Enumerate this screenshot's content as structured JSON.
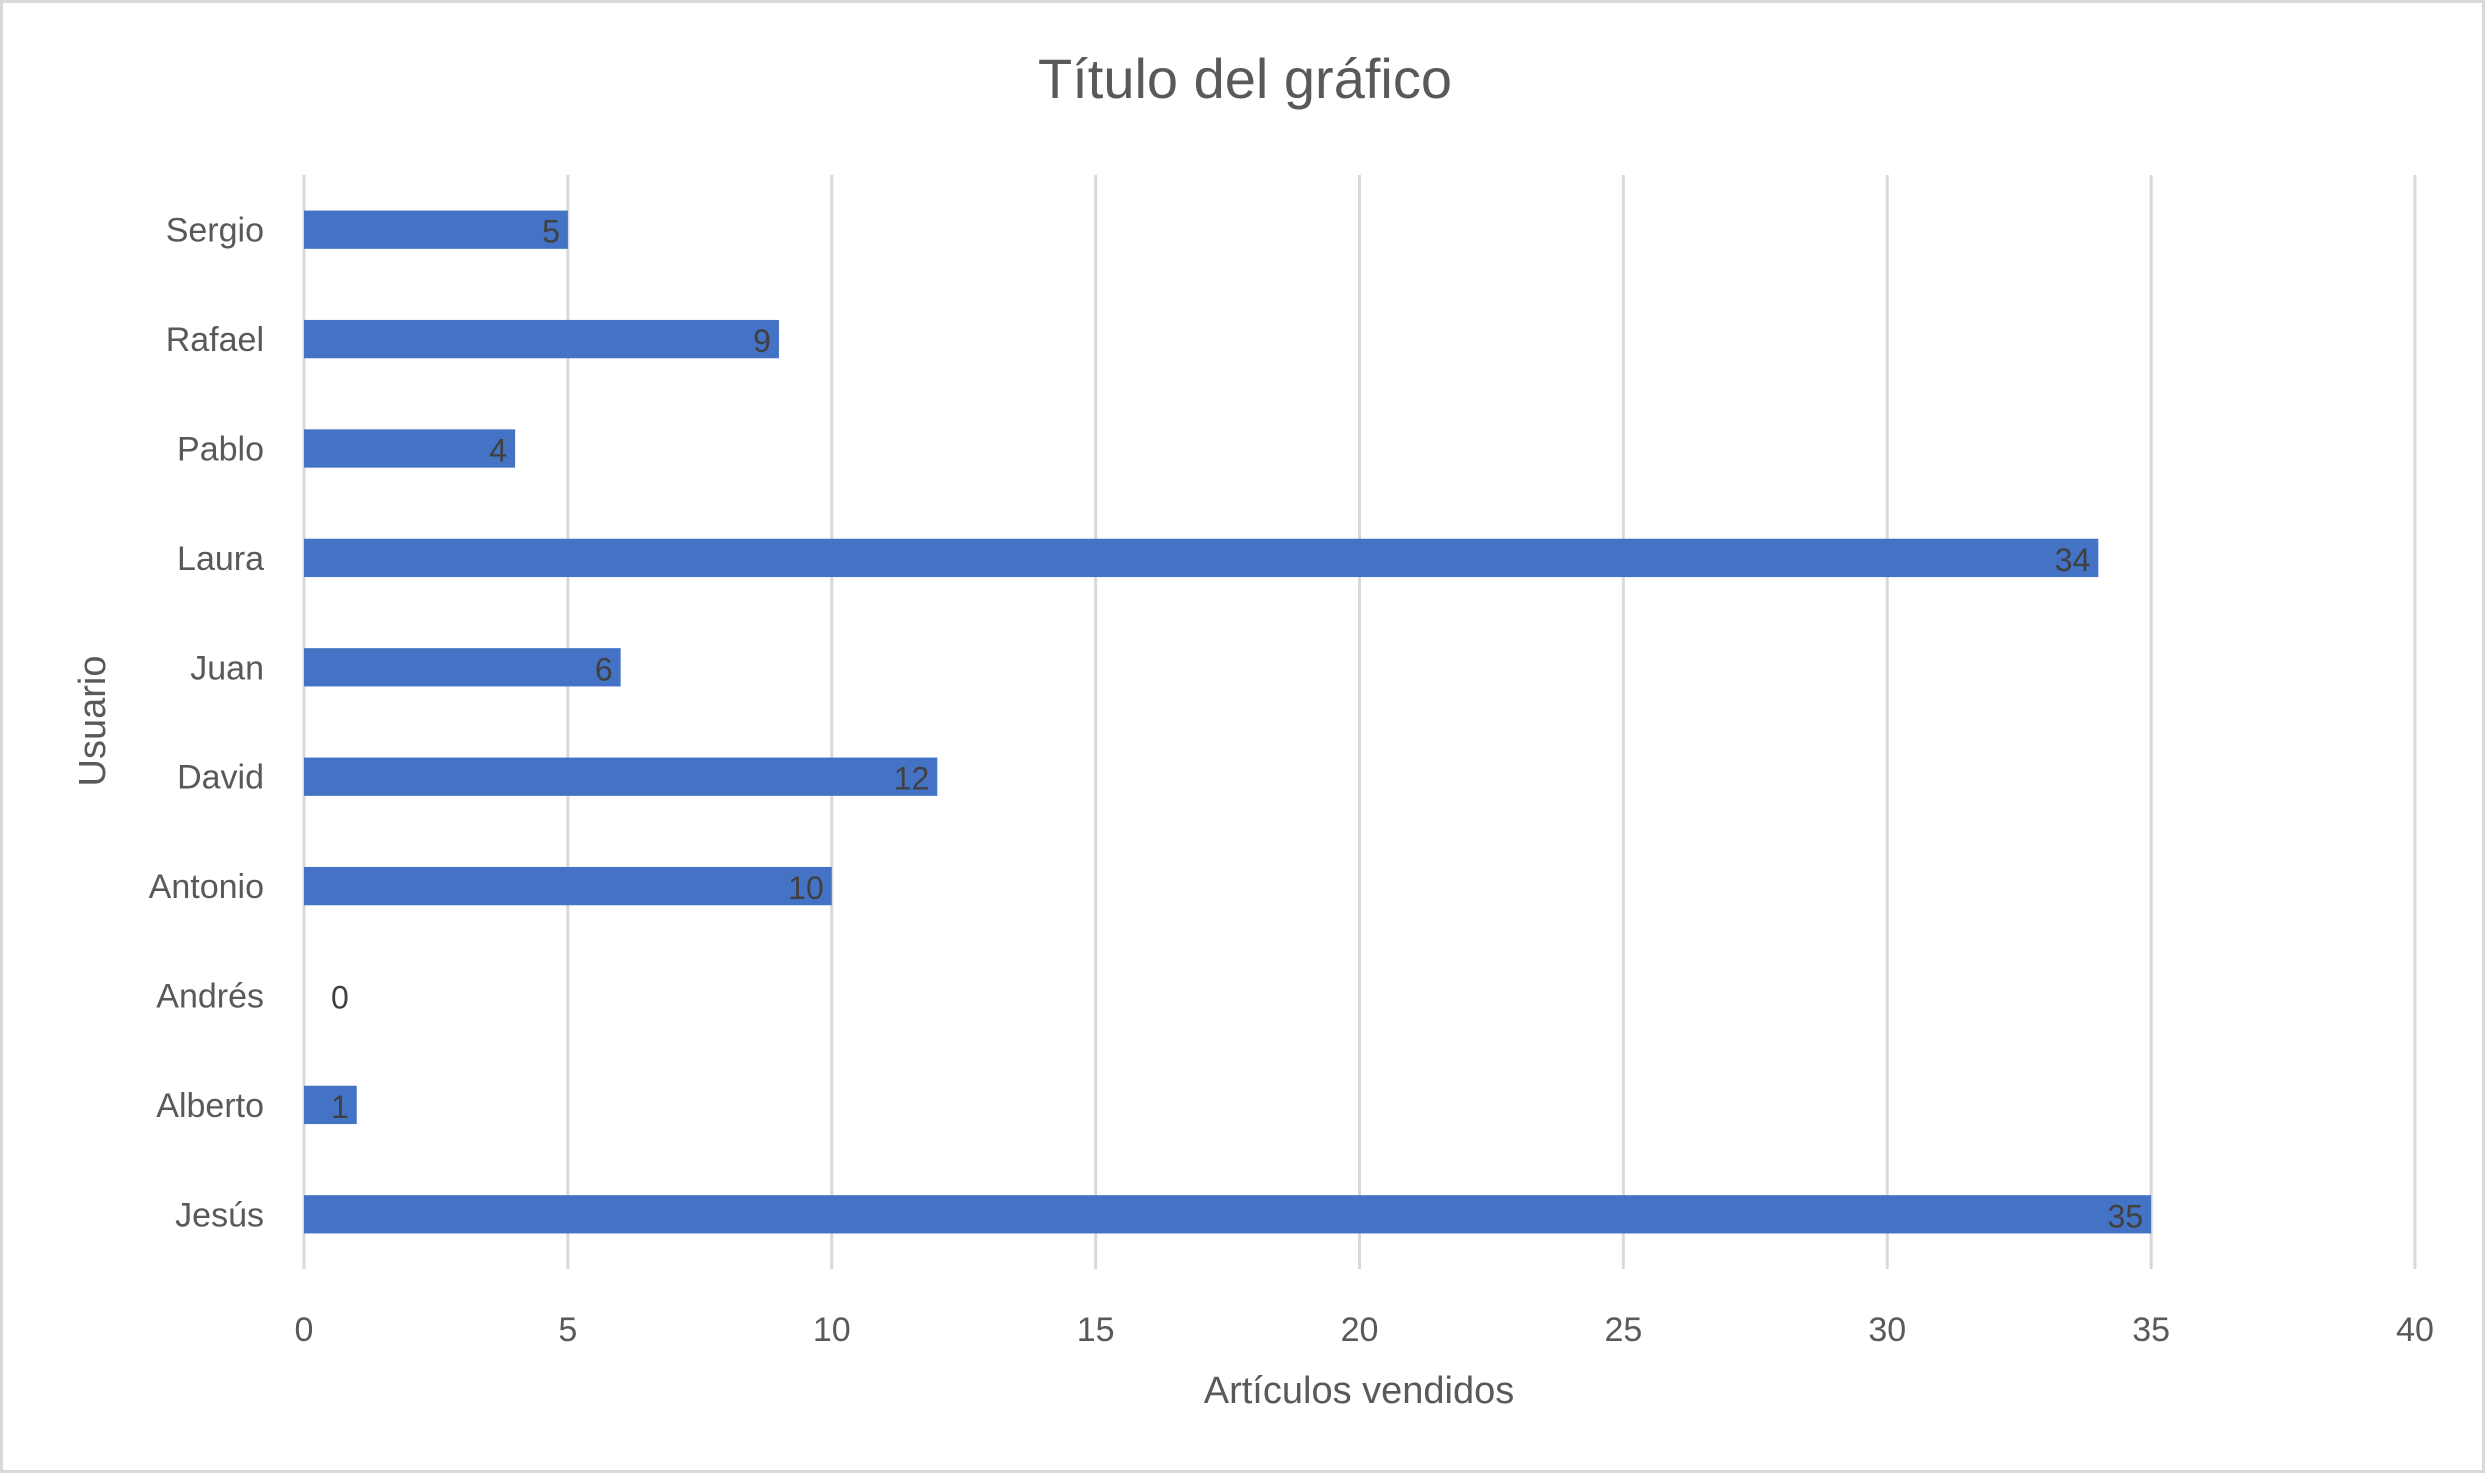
{
  "chart_data": {
    "type": "bar",
    "orientation": "horizontal",
    "title": "Título del gráfico",
    "xlabel": "Artículos vendidos",
    "ylabel": "Usuario",
    "categories": [
      "Jesús",
      "Alberto",
      "Andrés",
      "Antonio",
      "David",
      "Juan",
      "Laura",
      "Pablo",
      "Rafael",
      "Sergio"
    ],
    "values": [
      35,
      1,
      0,
      10,
      12,
      6,
      34,
      4,
      9,
      5
    ],
    "xlim": [
      0,
      40
    ],
    "xticks": [
      0,
      5,
      10,
      15,
      20,
      25,
      30,
      35,
      40
    ],
    "grid": "vertical",
    "legend": "none",
    "data_labels": true,
    "colors": {
      "bar": "#4472c4",
      "grid": "#d9d9d9",
      "text": "#595959",
      "data_label": "#404040",
      "border": "#d9d9d9"
    }
  }
}
